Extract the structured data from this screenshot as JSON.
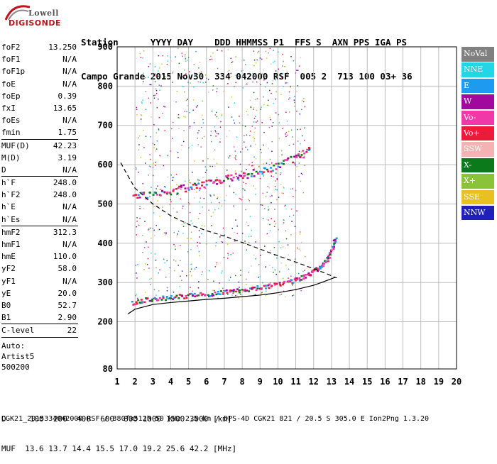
{
  "logo": {
    "top": "Lowell",
    "bottom": "DIGISONDE"
  },
  "header": {
    "line1": "Station      YYYY DAY    DDD HHMMSS P1  FFS S  AXN PPS IGA PS",
    "line2": "Campo Grande 2015 Nov30  334 042000 RSF  005 2  713 100 03+ 36"
  },
  "params": [
    {
      "key": "foF2",
      "value": "13.250"
    },
    {
      "key": "foF1",
      "value": "N/A"
    },
    {
      "key": "foF1p",
      "value": "N/A"
    },
    {
      "key": "foE",
      "value": "N/A"
    },
    {
      "key": "foEp",
      "value": "0.39"
    },
    {
      "key": "fxI",
      "value": "13.65"
    },
    {
      "key": "foEs",
      "value": "N/A"
    },
    {
      "key": "fmin",
      "value": "1.75"
    },
    {
      "key": "MUF(D)",
      "value": "42.23"
    },
    {
      "key": "M(D)",
      "value": "3.19"
    },
    {
      "key": "D",
      "value": "N/A"
    },
    {
      "key": "h`F",
      "value": "248.0"
    },
    {
      "key": "h`F2",
      "value": "248.0"
    },
    {
      "key": "h`E",
      "value": "N/A"
    },
    {
      "key": "h`Es",
      "value": "N/A"
    },
    {
      "key": "hmF2",
      "value": "312.3"
    },
    {
      "key": "hmF1",
      "value": "N/A"
    },
    {
      "key": "hmE",
      "value": "110.0"
    },
    {
      "key": "yF2",
      "value": "58.0"
    },
    {
      "key": "yF1",
      "value": "N/A"
    },
    {
      "key": "yE",
      "value": "20.0"
    },
    {
      "key": "B0",
      "value": "52.7"
    },
    {
      "key": "B1",
      "value": "2.90"
    },
    {
      "key": "C-level",
      "value": "22"
    }
  ],
  "auto": {
    "line1": "Auto:",
    "line2": "Artist5",
    "line3": "500200"
  },
  "legend": [
    {
      "label": "NoVal",
      "color": "#808080"
    },
    {
      "label": "NNE",
      "color": "#22d6e8"
    },
    {
      "label": "E",
      "color": "#1e9bf0"
    },
    {
      "label": "W",
      "color": "#a0089e"
    },
    {
      "label": "Vo-",
      "color": "#f038a8"
    },
    {
      "label": "Vo+",
      "color": "#ee1a3a"
    },
    {
      "label": "SSW",
      "color": "#f4b2b2"
    },
    {
      "label": "X-",
      "color": "#0a7a1a"
    },
    {
      "label": "X+",
      "color": "#8ac23a"
    },
    {
      "label": "SSE",
      "color": "#e8c020"
    },
    {
      "label": "NNW",
      "color": "#2020b8"
    }
  ],
  "chart_data": {
    "type": "scatter",
    "xlim": [
      1,
      20
    ],
    "ylim": [
      80,
      900
    ],
    "x_ticks": [
      1,
      2,
      3,
      4,
      5,
      6,
      7,
      8,
      9,
      10,
      11,
      12,
      13,
      14,
      15,
      16,
      17,
      18,
      19,
      20
    ],
    "y_ticks": [
      80,
      200,
      300,
      400,
      500,
      600,
      700,
      800,
      900
    ],
    "grid": true,
    "series": [
      {
        "name": "O-trace F2",
        "color": "#ee1a3a",
        "x": [
          1.8,
          2.5,
          3.5,
          4.5,
          5.5,
          6.5,
          7.5,
          8.5,
          9.5,
          10.5,
          11.2,
          11.8,
          12.3,
          12.7,
          13.0,
          13.2
        ],
        "y": [
          250,
          258,
          262,
          266,
          270,
          274,
          280,
          286,
          293,
          302,
          312,
          325,
          340,
          360,
          385,
          420
        ]
      },
      {
        "name": "2nd hop",
        "color": "#ee1a3a",
        "x": [
          1.8,
          3,
          4,
          5,
          6,
          7,
          8,
          9,
          10,
          11,
          11.8
        ],
        "y": [
          520,
          525,
          535,
          545,
          555,
          565,
          575,
          585,
          600,
          620,
          640
        ]
      },
      {
        "name": "profile solid",
        "color": "#000000",
        "x": [
          1.6,
          2,
          3,
          4,
          5,
          6,
          7,
          8,
          9,
          10,
          11,
          12,
          12.5,
          12.9,
          13.2,
          13.3
        ],
        "y": [
          220,
          232,
          244,
          249,
          253,
          257,
          260,
          264,
          268,
          274,
          282,
          293,
          301,
          308,
          313,
          312
        ]
      },
      {
        "name": "profile dashed",
        "color": "#000000",
        "x": [
          1.2,
          1.5,
          2,
          3,
          4,
          5,
          6,
          7,
          8,
          9,
          10,
          11,
          12,
          12.7,
          13.2
        ],
        "y": [
          605,
          580,
          540,
          500,
          470,
          448,
          432,
          418,
          402,
          385,
          368,
          352,
          335,
          323,
          313
        ]
      }
    ]
  },
  "footer": {
    "dist_line": "D     100  200  400  600  800 1000 1500 3000 [km]",
    "muf_line": "MUF  13.6 13.7 14.4 15.5 17.0 19.2 25.6 42.2 [MHz]"
  },
  "fileinfo": "CGK21_2015334042000.RSF / 380fx512h 50 kHz 2.5 km / DPS-4D CGK21 821 / 20.5 S 305.0 E Ion2Png 1.3.20"
}
